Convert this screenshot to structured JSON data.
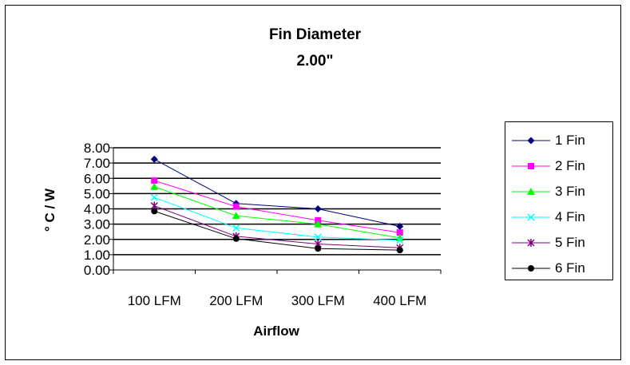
{
  "chart_data": {
    "type": "line",
    "title": "Fin Diameter",
    "subtitle": "2.00\"",
    "xlabel": "Airflow",
    "ylabel": "° C / W",
    "categories": [
      "100 LFM",
      "200 LFM",
      "300 LFM",
      "400 LFM"
    ],
    "yticks": [
      "0.00",
      "1.00",
      "2.00",
      "3.00",
      "4.00",
      "5.00",
      "6.00",
      "7.00",
      "8.00"
    ],
    "ylim": [
      0,
      8
    ],
    "grid": true,
    "legend_position": "right",
    "series": [
      {
        "name": "1 Fin",
        "values": [
          7.25,
          4.35,
          4.0,
          2.85
        ],
        "color": "#000080",
        "marker": "diamond"
      },
      {
        "name": "2 Fin",
        "values": [
          5.85,
          4.15,
          3.25,
          2.45
        ],
        "color": "#ff00ff",
        "marker": "square"
      },
      {
        "name": "3 Fin",
        "values": [
          5.45,
          3.55,
          3.0,
          2.1
        ],
        "color": "#00ff00",
        "marker": "triangle"
      },
      {
        "name": "4 Fin",
        "values": [
          4.75,
          2.75,
          2.15,
          1.95
        ],
        "color": "#00ffff",
        "marker": "x"
      },
      {
        "name": "5 Fin",
        "values": [
          4.2,
          2.2,
          1.7,
          1.45
        ],
        "color": "#800080",
        "marker": "star"
      },
      {
        "name": "6 Fin",
        "values": [
          3.85,
          2.05,
          1.4,
          1.3
        ],
        "color": "#000000",
        "marker": "circle"
      }
    ]
  }
}
